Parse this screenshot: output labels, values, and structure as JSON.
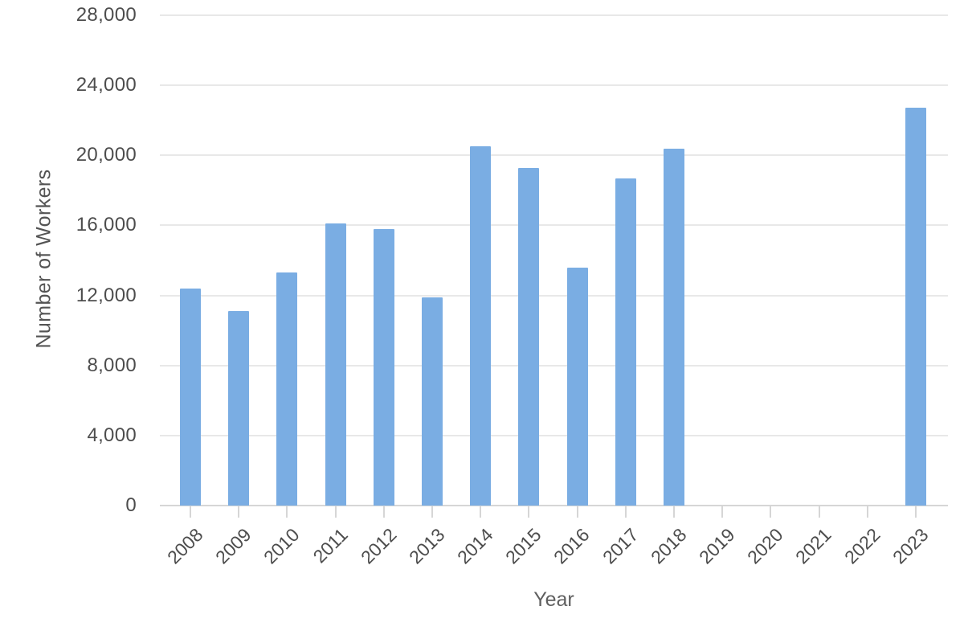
{
  "chart_data": {
    "type": "bar",
    "title": "",
    "xlabel": "Year",
    "ylabel": "Number of Workers",
    "categories": [
      "2008",
      "2009",
      "2010",
      "2011",
      "2012",
      "2013",
      "2014",
      "2015",
      "2016",
      "2017",
      "2018",
      "2019",
      "2020",
      "2021",
      "2022",
      "2023"
    ],
    "values": [
      12400,
      11100,
      13300,
      16100,
      15800,
      11900,
      20500,
      19300,
      13600,
      18700,
      20400,
      0,
      0,
      0,
      0,
      22700
    ],
    "ylim": [
      0,
      28000
    ],
    "ytick_step": 4000,
    "ytick_labels": [
      "0",
      "4,000",
      "8,000",
      "12,000",
      "16,000",
      "20,000",
      "24,000",
      "28,000"
    ],
    "grid": true,
    "legend_position": "none",
    "bar_color": "#7AADE3",
    "gridline_color": "#e8e8e8",
    "axis_line_color": "#d6d6d6",
    "tick_text_color": "#4d4d4d",
    "axis_title_color": "#5f5f5f"
  }
}
